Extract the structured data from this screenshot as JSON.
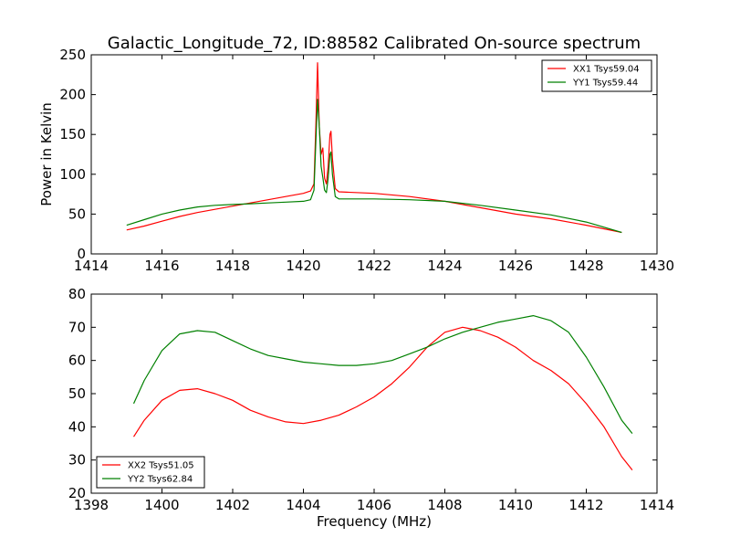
{
  "chart_data": [
    {
      "type": "line",
      "title": "Galactic_Longitude_72, ID:88582 Calibrated On-source spectrum",
      "xlabel": "",
      "ylabel": "Power in Kelvin",
      "xlim": [
        1414,
        1430
      ],
      "ylim": [
        0,
        250
      ],
      "xticks": [
        1414,
        1416,
        1418,
        1420,
        1422,
        1424,
        1426,
        1428,
        1430
      ],
      "yticks": [
        0,
        50,
        100,
        150,
        200,
        250
      ],
      "legend_position": "top-right",
      "series": [
        {
          "name": "XX1 Tsys59.04",
          "color": "#ff0000",
          "points": [
            [
              1415.0,
              30
            ],
            [
              1415.5,
              35
            ],
            [
              1416.0,
              41
            ],
            [
              1416.5,
              47
            ],
            [
              1417.0,
              52
            ],
            [
              1417.5,
              56
            ],
            [
              1418.0,
              60
            ],
            [
              1418.5,
              64
            ],
            [
              1419.0,
              68
            ],
            [
              1419.5,
              72
            ],
            [
              1420.0,
              76
            ],
            [
              1420.2,
              79
            ],
            [
              1420.3,
              88
            ],
            [
              1420.35,
              160
            ],
            [
              1420.4,
              240
            ],
            [
              1420.45,
              160
            ],
            [
              1420.5,
              125
            ],
            [
              1420.55,
              133
            ],
            [
              1420.6,
              95
            ],
            [
              1420.65,
              88
            ],
            [
              1420.7,
              110
            ],
            [
              1420.75,
              150
            ],
            [
              1420.78,
              154
            ],
            [
              1420.82,
              120
            ],
            [
              1420.9,
              82
            ],
            [
              1421.0,
              78
            ],
            [
              1422.0,
              76
            ],
            [
              1423.0,
              72
            ],
            [
              1424.0,
              66
            ],
            [
              1425.0,
              58
            ],
            [
              1426.0,
              50
            ],
            [
              1427.0,
              44
            ],
            [
              1428.0,
              36
            ],
            [
              1429.0,
              27
            ]
          ]
        },
        {
          "name": "YY1 Tsys59.44",
          "color": "#008000",
          "points": [
            [
              1415.0,
              36
            ],
            [
              1415.5,
              43
            ],
            [
              1416.0,
              50
            ],
            [
              1416.5,
              55
            ],
            [
              1417.0,
              59
            ],
            [
              1417.5,
              61
            ],
            [
              1418.0,
              62
            ],
            [
              1418.5,
              63
            ],
            [
              1419.0,
              64
            ],
            [
              1419.5,
              65
            ],
            [
              1420.0,
              66
            ],
            [
              1420.2,
              68
            ],
            [
              1420.3,
              80
            ],
            [
              1420.35,
              140
            ],
            [
              1420.4,
              194
            ],
            [
              1420.45,
              160
            ],
            [
              1420.5,
              110
            ],
            [
              1420.55,
              96
            ],
            [
              1420.6,
              80
            ],
            [
              1420.65,
              77
            ],
            [
              1420.7,
              95
            ],
            [
              1420.75,
              125
            ],
            [
              1420.78,
              128
            ],
            [
              1420.82,
              100
            ],
            [
              1420.9,
              72
            ],
            [
              1421.0,
              69
            ],
            [
              1422.0,
              69
            ],
            [
              1423.0,
              68
            ],
            [
              1424.0,
              66
            ],
            [
              1425.0,
              61
            ],
            [
              1426.0,
              55
            ],
            [
              1427.0,
              49
            ],
            [
              1428.0,
              40
            ],
            [
              1429.0,
              27
            ]
          ]
        }
      ]
    },
    {
      "type": "line",
      "title": "",
      "xlabel": "Frequency (MHz)",
      "ylabel": "",
      "xlim": [
        1398,
        1414
      ],
      "ylim": [
        20,
        80
      ],
      "xticks": [
        1398,
        1400,
        1402,
        1404,
        1406,
        1408,
        1410,
        1412,
        1414
      ],
      "yticks": [
        20,
        30,
        40,
        50,
        60,
        70,
        80
      ],
      "legend_position": "bottom-left",
      "series": [
        {
          "name": "XX2 Tsys51.05",
          "color": "#ff0000",
          "points": [
            [
              1399.2,
              37
            ],
            [
              1399.5,
              42
            ],
            [
              1400.0,
              48
            ],
            [
              1400.5,
              51
            ],
            [
              1401.0,
              51.5
            ],
            [
              1401.5,
              50
            ],
            [
              1402.0,
              48
            ],
            [
              1402.5,
              45
            ],
            [
              1403.0,
              43
            ],
            [
              1403.5,
              41.5
            ],
            [
              1404.0,
              41
            ],
            [
              1404.5,
              42
            ],
            [
              1405.0,
              43.5
            ],
            [
              1405.5,
              46
            ],
            [
              1406.0,
              49
            ],
            [
              1406.5,
              53
            ],
            [
              1407.0,
              58
            ],
            [
              1407.5,
              64
            ],
            [
              1408.0,
              68.5
            ],
            [
              1408.5,
              70
            ],
            [
              1409.0,
              69
            ],
            [
              1409.5,
              67
            ],
            [
              1410.0,
              64
            ],
            [
              1410.5,
              60
            ],
            [
              1411.0,
              57
            ],
            [
              1411.5,
              53
            ],
            [
              1412.0,
              47
            ],
            [
              1412.5,
              40
            ],
            [
              1413.0,
              31
            ],
            [
              1413.3,
              27
            ]
          ]
        },
        {
          "name": "YY2 Tsys62.84",
          "color": "#008000",
          "points": [
            [
              1399.2,
              47
            ],
            [
              1399.5,
              54
            ],
            [
              1400.0,
              63
            ],
            [
              1400.5,
              68
            ],
            [
              1401.0,
              69
            ],
            [
              1401.5,
              68.5
            ],
            [
              1402.0,
              66
            ],
            [
              1402.5,
              63.5
            ],
            [
              1403.0,
              61.5
            ],
            [
              1403.5,
              60.5
            ],
            [
              1404.0,
              59.5
            ],
            [
              1404.5,
              59
            ],
            [
              1405.0,
              58.5
            ],
            [
              1405.5,
              58.5
            ],
            [
              1406.0,
              59
            ],
            [
              1406.5,
              60
            ],
            [
              1407.0,
              62
            ],
            [
              1407.5,
              64
            ],
            [
              1408.0,
              66.5
            ],
            [
              1408.5,
              68.5
            ],
            [
              1409.0,
              70
            ],
            [
              1409.5,
              71.5
            ],
            [
              1410.0,
              72.5
            ],
            [
              1410.5,
              73.5
            ],
            [
              1411.0,
              72
            ],
            [
              1411.5,
              68.5
            ],
            [
              1412.0,
              61
            ],
            [
              1412.5,
              52
            ],
            [
              1413.0,
              42
            ],
            [
              1413.3,
              38
            ]
          ]
        }
      ]
    }
  ]
}
